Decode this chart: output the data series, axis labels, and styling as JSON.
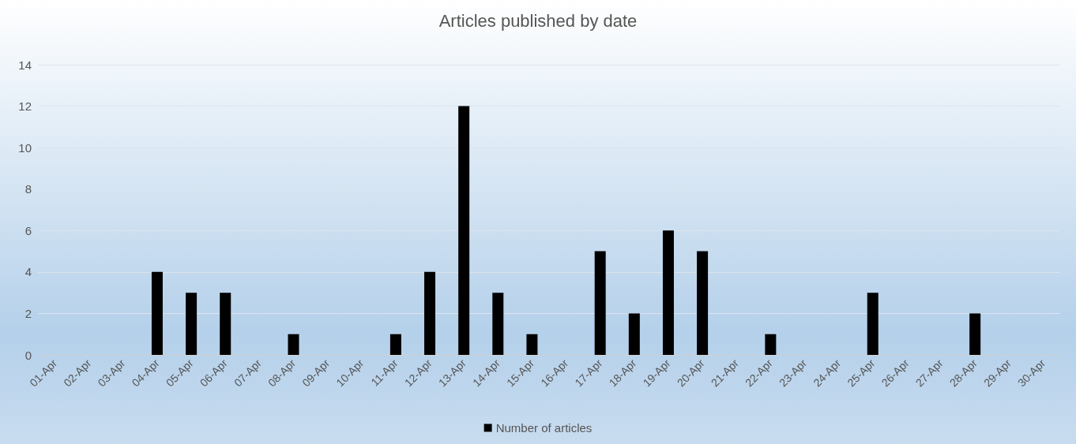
{
  "chart_data": {
    "type": "bar",
    "title": "Articles published by date",
    "categories": [
      "01-Apr",
      "02-Apr",
      "03-Apr",
      "04-Apr",
      "05-Apr",
      "06-Apr",
      "07-Apr",
      "08-Apr",
      "09-Apr",
      "10-Apr",
      "11-Apr",
      "12-Apr",
      "13-Apr",
      "14-Apr",
      "15-Apr",
      "16-Apr",
      "17-Apr",
      "18-Apr",
      "19-Apr",
      "20-Apr",
      "21-Apr",
      "22-Apr",
      "23-Apr",
      "24-Apr",
      "25-Apr",
      "26-Apr",
      "27-Apr",
      "28-Apr",
      "29-Apr",
      "30-Apr"
    ],
    "series": [
      {
        "name": "Number of articles",
        "color": "#000000",
        "values": [
          0,
          0,
          0,
          4,
          3,
          3,
          0,
          1,
          0,
          0,
          1,
          4,
          12,
          3,
          1,
          0,
          5,
          2,
          6,
          5,
          0,
          1,
          0,
          0,
          3,
          0,
          0,
          2,
          0,
          0
        ]
      }
    ],
    "ylim": [
      0,
      14
    ],
    "yticks": [
      0,
      2,
      4,
      6,
      8,
      10,
      12,
      14
    ],
    "grid": "y",
    "legend": "bottom"
  }
}
